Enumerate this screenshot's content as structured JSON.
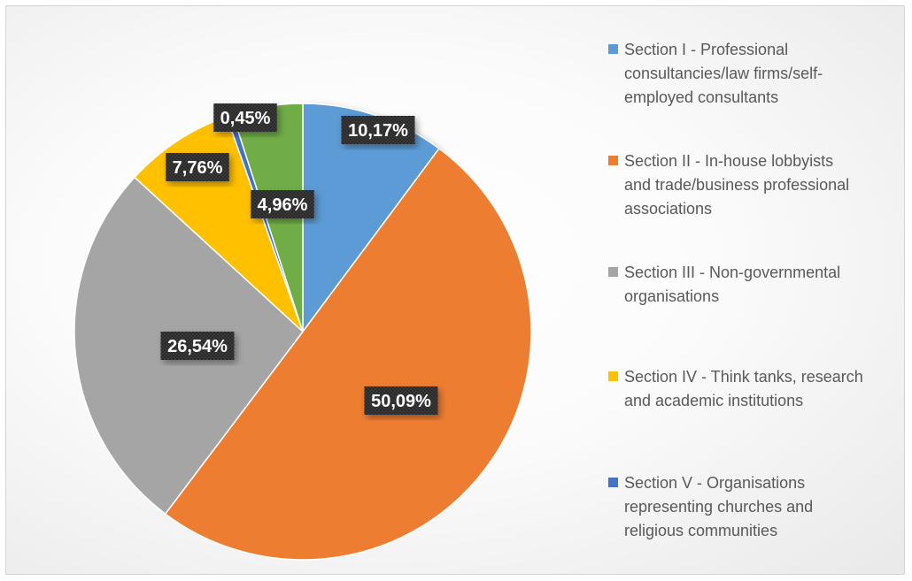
{
  "chart_data": {
    "type": "pie",
    "title": "",
    "legend_position": "right",
    "label_format": "comma-decimal-percent",
    "slices": [
      {
        "name": "Section I - Professional consultancies/law firms/self-employed consultants",
        "value": 10.17,
        "label": "10,17%",
        "color": "#5B9BD5"
      },
      {
        "name": "Section II - In-house lobbyists and trade/business professional associations",
        "value": 50.09,
        "label": "50,09%",
        "color": "#ED7D31"
      },
      {
        "name": "Section III - Non-governmental organisations",
        "value": 26.54,
        "label": "26,54%",
        "color": "#A5A5A5"
      },
      {
        "name": "Section IV - Think tanks, research and academic institutions",
        "value": 7.76,
        "label": "7,76%",
        "color": "#FFC000"
      },
      {
        "name": "Section V - Organisations representing churches and religious communities",
        "value": 0.45,
        "label": "0,45%",
        "color": "#4472C4"
      },
      {
        "name": "",
        "value": 4.96,
        "label": "4,96%",
        "color": "#70AD47"
      }
    ]
  },
  "legend": {
    "items": [
      {
        "lines": [
          "Section I - Professional",
          "consultancies/law firms/self-",
          "employed consultants"
        ],
        "color": "#5B9BD5"
      },
      {
        "lines": [
          "Section II - In-house lobbyists",
          "and trade/business professional",
          "associations"
        ],
        "color": "#ED7D31"
      },
      {
        "lines": [
          "Section III - Non-governmental",
          "organisations"
        ],
        "color": "#A5A5A5"
      },
      {
        "lines": [
          "Section IV - Think tanks, research",
          "and academic institutions"
        ],
        "color": "#FFC000"
      },
      {
        "lines": [
          "Section V - Organisations",
          "representing churches and",
          "religious communities"
        ],
        "color": "#4472C4"
      }
    ]
  }
}
